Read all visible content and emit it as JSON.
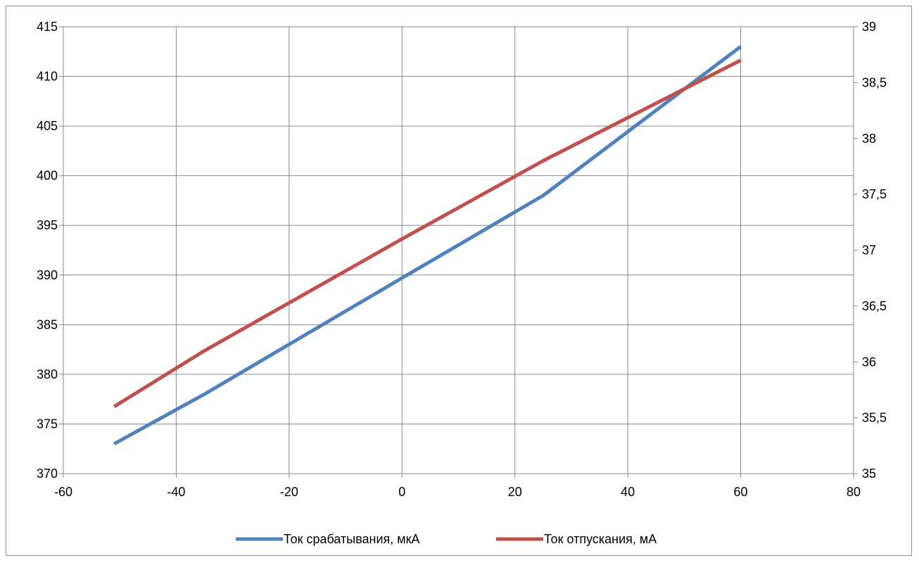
{
  "chart_data": {
    "type": "line",
    "title": "",
    "xlabel": "",
    "ylabel": "",
    "y2label": "",
    "xlim": [
      -60,
      80
    ],
    "ylim": [
      370,
      415
    ],
    "y2lim": [
      35,
      39
    ],
    "x_ticks": [
      "-60",
      "-40",
      "-20",
      "0",
      "20",
      "40",
      "60",
      "80"
    ],
    "x_tick_values": [
      -60,
      -40,
      -20,
      0,
      20,
      40,
      60,
      80
    ],
    "y_ticks": [
      "370",
      "375",
      "380",
      "385",
      "390",
      "395",
      "400",
      "405",
      "410",
      "415"
    ],
    "y_tick_values": [
      370,
      375,
      380,
      385,
      390,
      395,
      400,
      405,
      410,
      415
    ],
    "y2_ticks": [
      "35",
      "35,5",
      "36",
      "36,5",
      "37",
      "37,5",
      "38",
      "38,5",
      "39"
    ],
    "y2_tick_values": [
      35,
      35.5,
      36,
      36.5,
      37,
      37.5,
      38,
      38.5,
      39
    ],
    "grid": true,
    "legend_position": "bottom",
    "series": [
      {
        "name": "Ток срабатывания, мкА",
        "axis": "left",
        "color": "#4f81bd",
        "x": [
          -51,
          -35,
          0,
          25,
          60
        ],
        "y": [
          373,
          378,
          389.7,
          398,
          413
        ]
      },
      {
        "name": "Ток отпускания, мА",
        "axis": "right",
        "color": "#c0504d",
        "x": [
          -51,
          -35,
          0,
          25,
          60
        ],
        "y": [
          35.6,
          36.1,
          37.1,
          37.8,
          38.7
        ]
      }
    ]
  }
}
